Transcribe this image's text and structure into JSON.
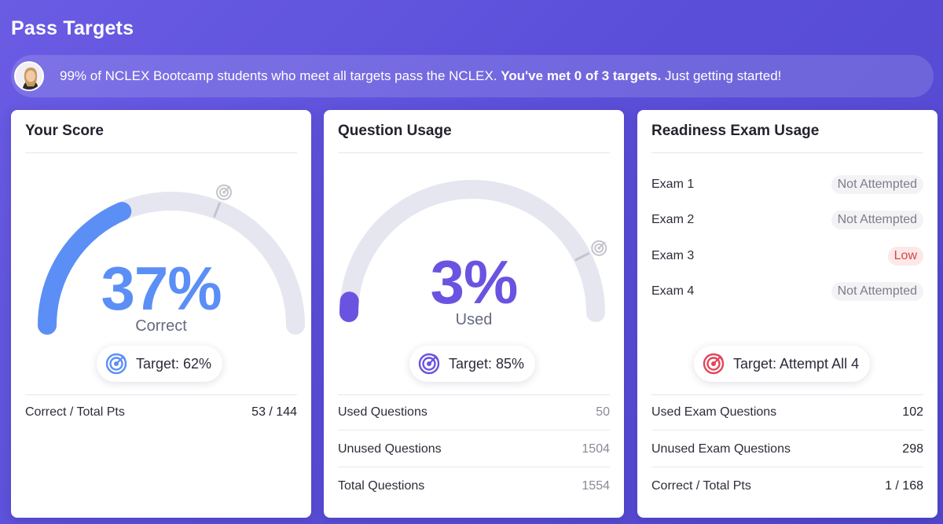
{
  "page": {
    "title": "Pass Targets"
  },
  "banner": {
    "text_before": "99% of NCLEX Bootcamp students who meet all targets pass the NCLEX.",
    "text_bold": "You've met 0 of 3 targets.",
    "text_after": "Just getting started!"
  },
  "cards": {
    "score": {
      "title": "Your Score",
      "value": "37%",
      "value_fraction": 0.37,
      "target_fraction": 0.62,
      "sub_label": "Correct",
      "target_label": "Target: 62%",
      "accent": "#5b8ff5",
      "stat_label": "Correct / Total Pts",
      "stat_value": "53 / 144"
    },
    "usage": {
      "title": "Question Usage",
      "value": "3%",
      "value_fraction": 0.03,
      "target_fraction": 0.85,
      "sub_label": "Used",
      "target_label": "Target: 85%",
      "accent": "#6a53e0",
      "rows": [
        {
          "label": "Used Questions",
          "value": "50"
        },
        {
          "label": "Unused Questions",
          "value": "1504"
        },
        {
          "label": "Total Questions",
          "value": "1554"
        }
      ]
    },
    "readiness": {
      "title": "Readiness Exam Usage",
      "exams": [
        {
          "label": "Exam 1",
          "status": "Not Attempted"
        },
        {
          "label": "Exam 2",
          "status": "Not Attempted"
        },
        {
          "label": "Exam 3",
          "status": "Low"
        },
        {
          "label": "Exam 4",
          "status": "Not Attempted"
        }
      ],
      "target_label": "Target: Attempt All 4",
      "accent": "#e0475a",
      "rows": [
        {
          "label": "Used Exam Questions",
          "value": "102"
        },
        {
          "label": "Unused Exam Questions",
          "value": "298"
        },
        {
          "label": "Correct / Total Pts",
          "value": "1 / 168"
        }
      ]
    }
  },
  "icons": {
    "target": "target-icon",
    "avatar": "avatar-photo"
  },
  "colors": {
    "track": "#e6e6f0",
    "target_marker": "#c4c4cc"
  }
}
